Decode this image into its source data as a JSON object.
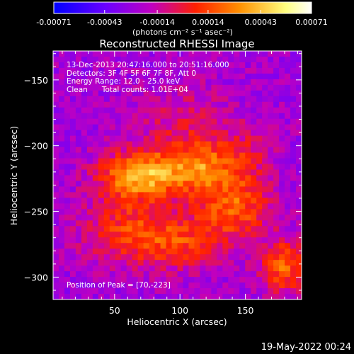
{
  "chart_data": {
    "type": "heatmap",
    "title": "Reconstructed RHESSI Image",
    "xlabel": "Heliocentric X (arcsec)",
    "ylabel": "Heliocentric Y (arcsec)",
    "xlim": [
      3,
      193
    ],
    "ylim": [
      -317,
      -128
    ],
    "x_ticks": [
      50,
      100,
      150
    ],
    "y_ticks": [
      -150,
      -200,
      -250,
      -300
    ],
    "colorbar": {
      "ticks": [
        "-0.00071",
        "-0.00043",
        "-0.00014",
        "0.00014",
        "0.00043",
        "0.00071"
      ],
      "tick_values": [
        -0.00071,
        -0.00043,
        -0.00014,
        0.00014,
        0.00043,
        0.00071
      ],
      "range": [
        -0.00071,
        0.00071
      ],
      "units_label": "(photons cm⁻² s⁻¹ asec⁻²)",
      "colors": [
        "#0000ff",
        "#6a00ff",
        "#c000c0",
        "#ff2000",
        "#ff9000",
        "#ffff80",
        "#ffffff"
      ]
    },
    "peak": [
      70,
      -223
    ],
    "sources": [
      {
        "x": 70,
        "y": -223,
        "amp": 0.00066,
        "sx": 22,
        "sy": 13
      },
      {
        "x": 115,
        "y": -216,
        "amp": 0.0004,
        "sx": 18,
        "sy": 12
      },
      {
        "x": 140,
        "y": -245,
        "amp": 0.00045,
        "sx": 20,
        "sy": 18
      },
      {
        "x": 60,
        "y": -265,
        "amp": 0.00035,
        "sx": 24,
        "sy": 16
      },
      {
        "x": 100,
        "y": -275,
        "amp": 0.00032,
        "sx": 22,
        "sy": 14
      },
      {
        "x": 180,
        "y": -292,
        "amp": 0.00045,
        "sx": 12,
        "sy": 14
      },
      {
        "x": 105,
        "y": -185,
        "amp": 0.0002,
        "sx": 25,
        "sy": 20
      },
      {
        "x": 150,
        "y": -205,
        "amp": 0.00018,
        "sx": 15,
        "sy": 15
      }
    ],
    "background_level": -0.00025
  },
  "annotations": {
    "time_range": "13-Dec-2013 20:47:16.000 to 20:51:16.000",
    "detectors": "Detectors: 3F 4F 5F 6F 7F 8F, Att 0",
    "energy_range": "Energy Range: 12.0 - 25.0 keV",
    "method_counts": "Clean      Total counts: 1.01E+04",
    "peak_text": "Position of Peak = [70,-223]"
  },
  "footer": {
    "date": "19-May-2022 00:24"
  }
}
